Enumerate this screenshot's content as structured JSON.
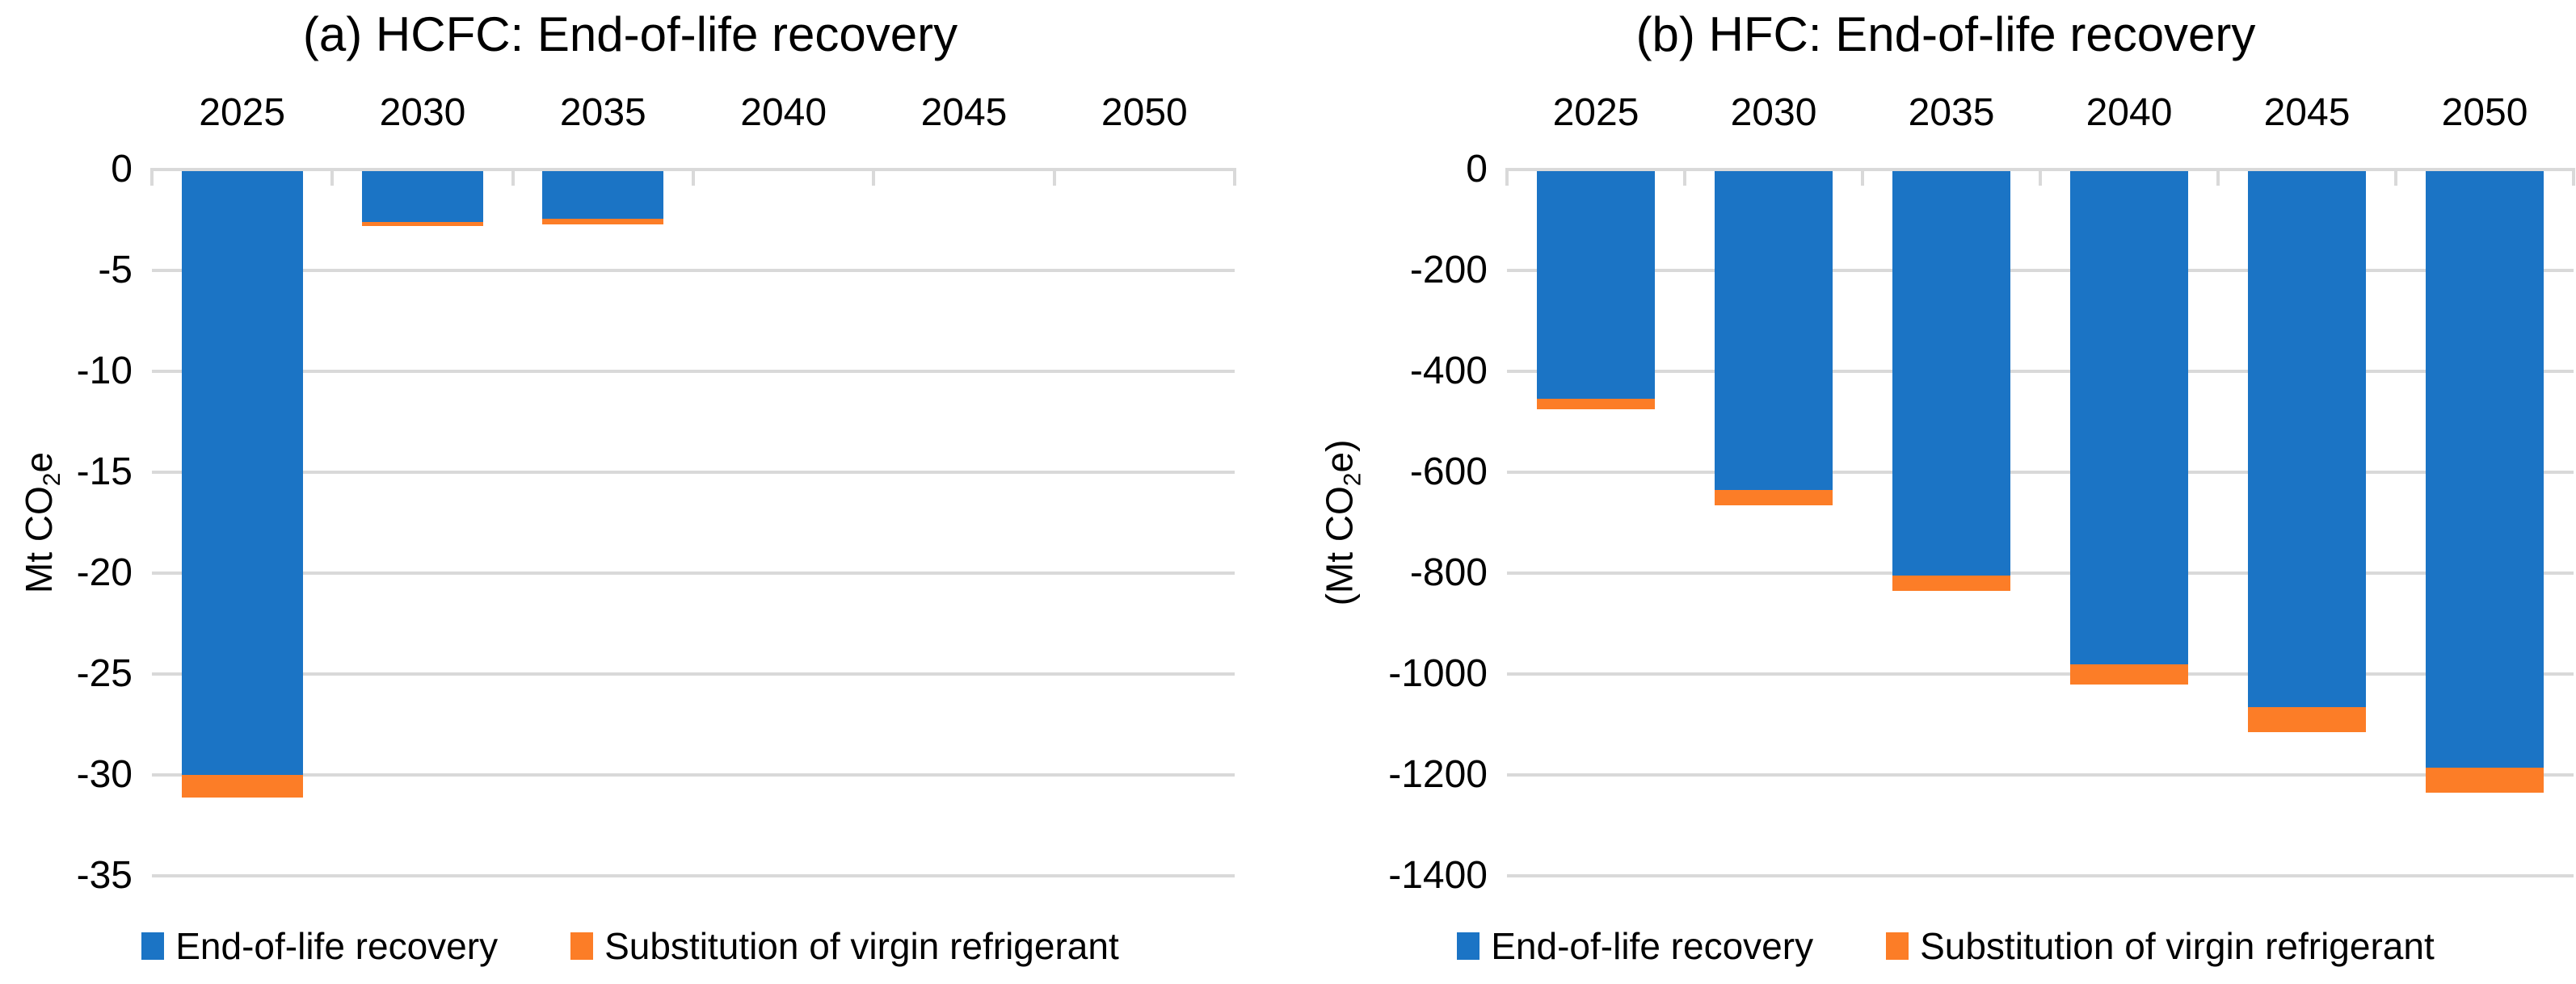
{
  "page": {
    "background": "#FFFFFF"
  },
  "colors": {
    "end_of_life_blue": "#1B74C5",
    "substitution_orange": "#FC7D27",
    "gridline_gray": "#D9D9D9",
    "text_black": "#000000"
  },
  "chart_data": [
    {
      "type": "bar",
      "stacked": true,
      "title": "(a) HCFC: End-of-life recovery",
      "ylabel": "Mt CO2e",
      "ylabel_parts": [
        "Mt CO",
        "2",
        "e"
      ],
      "xlabel": "",
      "categories": [
        "2025",
        "2030",
        "2035",
        "2040",
        "2045",
        "2050"
      ],
      "series": [
        {
          "name": "End-of-life recovery",
          "color": "#1B74C5",
          "values": [
            -30,
            -2.6,
            -2.45,
            0,
            0,
            0
          ]
        },
        {
          "name": "Substitution of virgin refrigerant",
          "color": "#FC7D27",
          "values": [
            -1.1,
            -0.2,
            -0.25,
            0,
            0,
            0
          ]
        }
      ],
      "ylim": [
        0,
        -35
      ],
      "yticks": [
        0,
        -5,
        -10,
        -15,
        -20,
        -25,
        -30,
        -35
      ],
      "ytick_labels": [
        "0",
        "-5",
        "-10",
        "-15",
        "-20",
        "-25",
        "-30",
        "-35"
      ],
      "grid": true,
      "x_axis_position": "top",
      "legend_position": "bottom"
    },
    {
      "type": "bar",
      "stacked": true,
      "title": "(b) HFC: End-of-life recovery",
      "ylabel": "(Mt CO2e)",
      "ylabel_parts": [
        "(Mt CO",
        "2",
        "e)"
      ],
      "xlabel": "",
      "categories": [
        "2025",
        "2030",
        "2035",
        "2040",
        "2045",
        "2050"
      ],
      "series": [
        {
          "name": "End-of-life recovery",
          "color": "#1B74C5",
          "values": [
            -455,
            -635,
            -805,
            -980,
            -1065,
            -1185
          ]
        },
        {
          "name": "Substitution of virgin refrigerant",
          "color": "#FC7D27",
          "values": [
            -20,
            -30,
            -30,
            -40,
            -50,
            -50
          ]
        }
      ],
      "ylim": [
        0,
        -1400
      ],
      "yticks": [
        0,
        -200,
        -400,
        -600,
        -800,
        -1000,
        -1200,
        -1400
      ],
      "ytick_labels": [
        "0",
        "-200",
        "-400",
        "-600",
        "-800",
        "-1000",
        "-1200",
        "-1400"
      ],
      "grid": true,
      "x_axis_position": "top",
      "legend_position": "bottom"
    }
  ]
}
